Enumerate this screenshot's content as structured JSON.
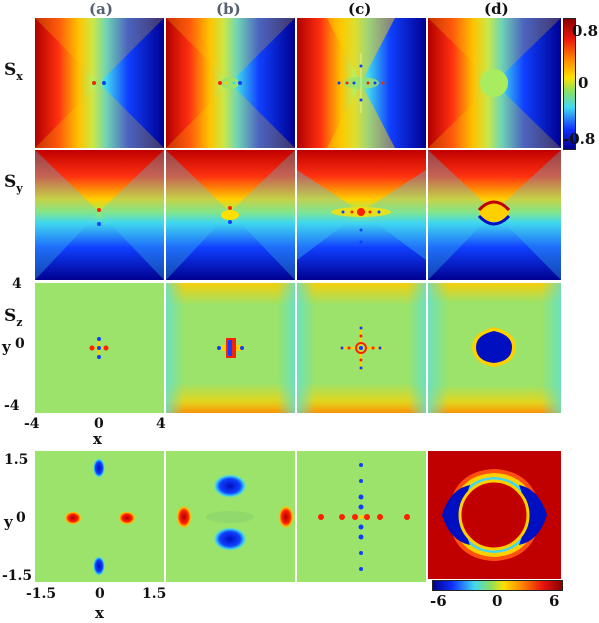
{
  "columns": [
    "(a)",
    "(b)",
    "(c)",
    "(d)"
  ],
  "rows": [
    {
      "base": "S",
      "sub": "x"
    },
    {
      "base": "S",
      "sub": "y"
    },
    {
      "base": "S",
      "sub": "z"
    }
  ],
  "top_axes": {
    "y_label": "y",
    "x_label": "x",
    "y_ticks": [
      "4",
      "0",
      "-4"
    ],
    "x_ticks": [
      "-4",
      "0",
      "4"
    ]
  },
  "bottom_axes": {
    "y_label": "y",
    "x_label": "x",
    "y_ticks": [
      "1.5",
      "0",
      "-1.5"
    ],
    "x_ticks": [
      "-1.5",
      "0",
      "1.5"
    ]
  },
  "colorbar_top": {
    "max": "0.8",
    "mid": "0",
    "min": "-0.8"
  },
  "colorbar_bottom": {
    "min": "-6",
    "mid": "0",
    "max": "6"
  },
  "colors": {
    "dark_red": "#8b0000",
    "red": "#e8140c",
    "orange": "#ff8c00",
    "yellow": "#ffe000",
    "green": "#8ee05a",
    "cyan": "#40d8f0",
    "blue": "#1030ff",
    "dark_blue": "#00008b",
    "background_field": "#9be36a"
  }
}
